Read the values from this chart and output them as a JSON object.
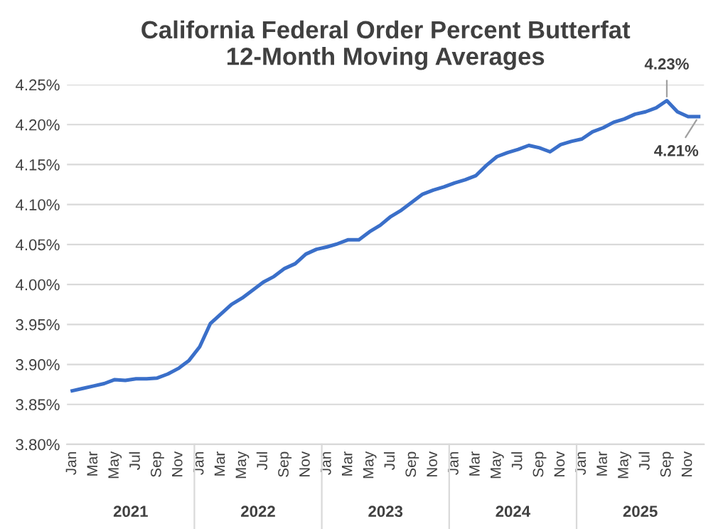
{
  "chart_data": {
    "type": "line",
    "title": "California Federal Order Percent Butterfat\n12-Month Moving Averages",
    "categories": [
      "Jan",
      null,
      "Mar",
      null,
      "May",
      null,
      "Jul",
      null,
      "Sep",
      null,
      "Nov",
      null,
      "Jan",
      null,
      "Mar",
      null,
      "May",
      null,
      "Jul",
      null,
      "Sep",
      null,
      "Nov",
      null,
      "Jan",
      null,
      "Mar",
      null,
      "May",
      null,
      "Jul",
      null,
      "Sep",
      null,
      "Nov",
      null,
      "Jan",
      null,
      "Mar",
      null,
      "May",
      null,
      "Jul",
      null,
      "Sep",
      null,
      "Nov",
      null,
      "Jan",
      null,
      "Mar",
      null,
      "May",
      null,
      "Jul",
      null,
      "Sep",
      null,
      "Nov",
      null
    ],
    "series": [
      {
        "color": "#3a6fc9",
        "values": [
          3.867,
          3.87,
          3.873,
          3.876,
          3.881,
          3.88,
          3.882,
          3.882,
          3.883,
          3.888,
          3.895,
          3.905,
          3.922,
          3.951,
          3.963,
          3.975,
          3.983,
          3.993,
          4.003,
          4.01,
          4.02,
          4.026,
          4.038,
          4.044,
          4.047,
          4.051,
          4.056,
          4.056,
          4.066,
          4.074,
          4.085,
          4.093,
          4.103,
          4.113,
          4.118,
          4.122,
          4.127,
          4.131,
          4.136,
          4.149,
          4.16,
          4.165,
          4.169,
          4.174,
          4.171,
          4.166,
          4.175,
          4.179,
          4.182,
          4.191,
          4.196,
          4.203,
          4.207,
          4.213,
          4.216,
          4.221,
          4.23,
          4.216,
          4.21,
          4.21
        ],
        "value_labels": [
          null,
          null,
          null,
          null,
          null,
          null,
          null,
          null,
          null,
          null,
          null,
          null,
          null,
          null,
          null,
          null,
          null,
          null,
          null,
          null,
          null,
          null,
          null,
          null,
          null,
          null,
          null,
          null,
          null,
          null,
          null,
          null,
          null,
          null,
          null,
          null,
          null,
          null,
          null,
          null,
          null,
          null,
          null,
          null,
          null,
          null,
          null,
          null,
          null,
          null,
          null,
          null,
          null,
          null,
          null,
          null,
          "4.23%",
          null,
          null,
          "4.21%"
        ]
      }
    ],
    "annotations": [
      "2021",
      "2022",
      "2023",
      "2024",
      "2025"
    ],
    "ylim": [
      3.8,
      4.25
    ],
    "yticks": [
      {
        "value": 3.8,
        "label": "3.80%"
      },
      {
        "value": 3.85,
        "label": "3.85%"
      },
      {
        "value": 3.9,
        "label": "3.90%"
      },
      {
        "value": 3.95,
        "label": "3.95%"
      },
      {
        "value": 4.0,
        "label": "4.00%"
      },
      {
        "value": 4.05,
        "label": "4.05%"
      },
      {
        "value": 4.1,
        "label": "4.10%"
      },
      {
        "value": 4.15,
        "label": "4.15%"
      },
      {
        "value": 4.2,
        "label": "4.20%"
      },
      {
        "value": 4.25,
        "label": "4.25%"
      }
    ],
    "grid": "y",
    "legend": false,
    "marker": "none",
    "line_style": "solid"
  }
}
